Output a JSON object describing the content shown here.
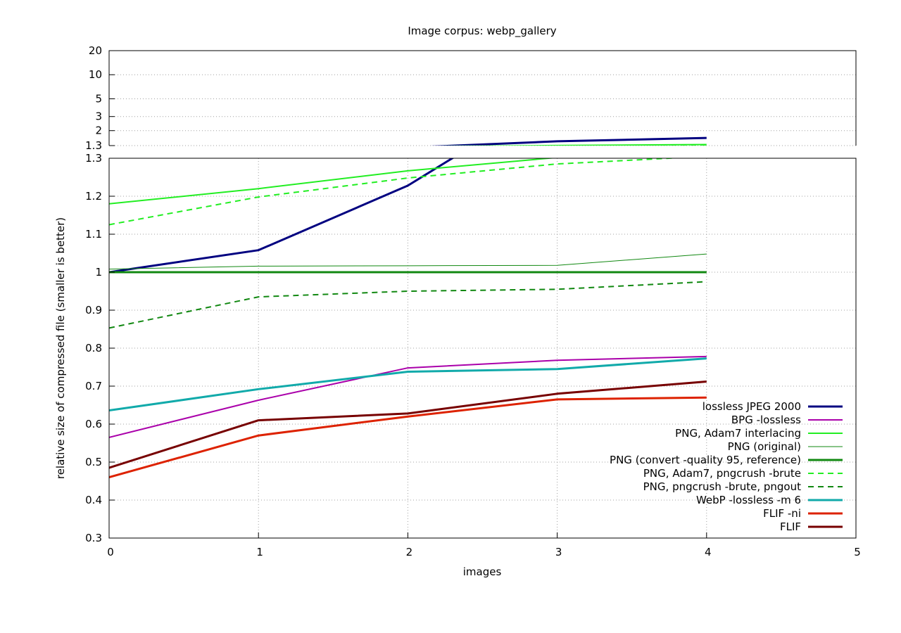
{
  "chart_data": {
    "type": "line",
    "title": "Image corpus: webp_gallery",
    "xlabel": "images",
    "ylabel": "relative size of compressed file (smaller is better)",
    "xlim": [
      0,
      5
    ],
    "x_ticks": [
      0,
      1,
      2,
      3,
      4,
      5
    ],
    "x_tick_labels": [
      "0",
      "1",
      "2",
      "3",
      "4",
      "5"
    ],
    "broken_y_axis": true,
    "lower_panel": {
      "ylim": [
        0.3,
        1.3
      ],
      "y_ticks": [
        0.3,
        0.4,
        0.5,
        0.6,
        0.7,
        0.8,
        0.9,
        1.0,
        1.1,
        1.2,
        1.3
      ],
      "y_tick_labels": [
        "0.3",
        "0.4",
        "0.5",
        "0.6",
        "0.7",
        "0.8",
        "0.9",
        "1",
        "1.1",
        "1.2",
        "1.3"
      ]
    },
    "upper_panel": {
      "scale": "log",
      "ylim": [
        1.3,
        20
      ],
      "y_ticks": [
        1.3,
        2,
        3,
        5,
        10,
        20
      ],
      "y_tick_labels": [
        "1.3",
        "2",
        "3",
        "5",
        "10",
        "20"
      ]
    },
    "grid": true,
    "legend_position": "bottom-right",
    "x": [
      0,
      1,
      2,
      3,
      4
    ],
    "series": [
      {
        "name": "lossless JPEG 2000",
        "values": [
          1.0,
          1.058,
          1.228,
          1.47,
          1.62
        ],
        "color": "#000080",
        "width": 3,
        "dash": ""
      },
      {
        "name": "BPG -lossless",
        "values": [
          0.565,
          0.663,
          0.748,
          0.768,
          0.778
        ],
        "color": "#aa00aa",
        "width": 2,
        "dash": ""
      },
      {
        "name": "PNG, Adam7 interlacing",
        "values": [
          1.18,
          1.22,
          1.267,
          1.302,
          1.34
        ],
        "color": "#22ee22",
        "width": 2,
        "dash": ""
      },
      {
        "name": "PNG (original)",
        "values": [
          1.008,
          1.016,
          1.017,
          1.018,
          1.048
        ],
        "color": "#118811",
        "width": 1,
        "dash": ""
      },
      {
        "name": "PNG (convert -quality 95, reference)",
        "values": [
          1.0,
          1.0,
          1.0,
          1.0,
          1.0
        ],
        "color": "#118811",
        "width": 3,
        "dash": ""
      },
      {
        "name": "PNG, Adam7, pngcrush -brute",
        "values": [
          1.125,
          1.198,
          1.248,
          1.285,
          1.305
        ],
        "color": "#22ee22",
        "width": 2,
        "dash": "8,6"
      },
      {
        "name": "PNG, pngcrush -brute, pngout",
        "values": [
          0.853,
          0.935,
          0.95,
          0.955,
          0.975
        ],
        "color": "#118811",
        "width": 2,
        "dash": "8,6"
      },
      {
        "name": "WebP -lossless -m 6",
        "values": [
          0.636,
          0.692,
          0.738,
          0.745,
          0.773
        ],
        "color": "#11aaaa",
        "width": 3,
        "dash": ""
      },
      {
        "name": "FLIF -ni",
        "values": [
          0.46,
          0.57,
          0.62,
          0.665,
          0.67
        ],
        "color": "#dd2200",
        "width": 3,
        "dash": ""
      },
      {
        "name": "FLIF",
        "values": [
          0.485,
          0.61,
          0.628,
          0.68,
          0.712
        ],
        "color": "#770000",
        "width": 3,
        "dash": ""
      }
    ]
  }
}
